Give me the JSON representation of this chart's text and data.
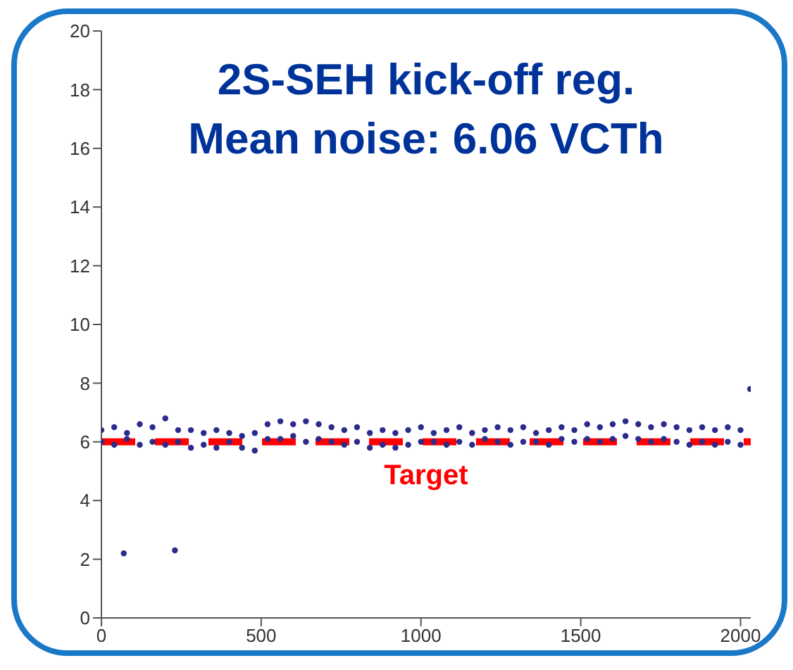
{
  "chart_data": {
    "type": "scatter",
    "title": "2S-SEH kick-off reg.",
    "subtitle": "Mean noise: 6.06 VCTh",
    "x": [
      0,
      40,
      80,
      120,
      160,
      200,
      240,
      280,
      320,
      360,
      400,
      440,
      480,
      520,
      560,
      600,
      640,
      680,
      720,
      760,
      800,
      840,
      880,
      920,
      960,
      1000,
      1040,
      1080,
      1120,
      1160,
      1200,
      1240,
      1280,
      1320,
      1360,
      1400,
      1440,
      1480,
      1520,
      1560,
      1600,
      1640,
      1680,
      1720,
      1760,
      1800,
      1840,
      1880,
      1920,
      1960,
      2000
    ],
    "series": [
      {
        "color": "#2b2b8c",
        "values": [
          6.4,
          6.5,
          6.3,
          6.6,
          6.5,
          6.8,
          6.4,
          6.4,
          6.3,
          6.4,
          6.3,
          6.2,
          6.3,
          6.6,
          6.7,
          6.6,
          6.7,
          6.6,
          6.5,
          6.4,
          6.5,
          6.3,
          6.4,
          6.3,
          6.4,
          6.5,
          6.3,
          6.4,
          6.5,
          6.3,
          6.4,
          6.5,
          6.4,
          6.5,
          6.3,
          6.4,
          6.5,
          6.4,
          6.6,
          6.5,
          6.6,
          6.7,
          6.6,
          6.5,
          6.6,
          6.5,
          6.4,
          6.5,
          6.4,
          6.5,
          6.4
        ]
      },
      {
        "color": "#2b2b8c",
        "values": [
          6.0,
          5.9,
          6.1,
          5.9,
          6.0,
          5.9,
          6.0,
          5.8,
          5.9,
          5.8,
          6.0,
          5.8,
          5.7,
          6.1,
          6.1,
          6.2,
          6.0,
          6.1,
          6.0,
          5.9,
          6.0,
          5.8,
          5.9,
          5.8,
          5.9,
          6.0,
          6.0,
          5.9,
          6.0,
          5.9,
          6.1,
          6.0,
          5.9,
          6.0,
          6.0,
          5.9,
          6.1,
          6.0,
          6.1,
          6.0,
          6.1,
          6.2,
          6.1,
          6.0,
          6.1,
          6.0,
          5.9,
          6.0,
          5.9,
          6.0,
          5.9
        ]
      },
      {
        "color": "#2b2b8c",
        "x": [
          70,
          230,
          2030
        ],
        "values": [
          2.2,
          2.3,
          7.8
        ]
      }
    ],
    "xlim": [
      0,
      2032
    ],
    "xticks": [
      0,
      500,
      1000,
      1500,
      2000
    ],
    "ylim": [
      0,
      20
    ],
    "yticks": [
      0,
      2,
      4,
      6,
      8,
      10,
      12,
      14,
      16,
      18,
      20
    ],
    "marker": "circle",
    "grid": false,
    "ref_lines": [
      {
        "axis": "y",
        "value": 6,
        "label": "Target",
        "color": "#ff0000",
        "line_style": "dashed"
      }
    ]
  }
}
